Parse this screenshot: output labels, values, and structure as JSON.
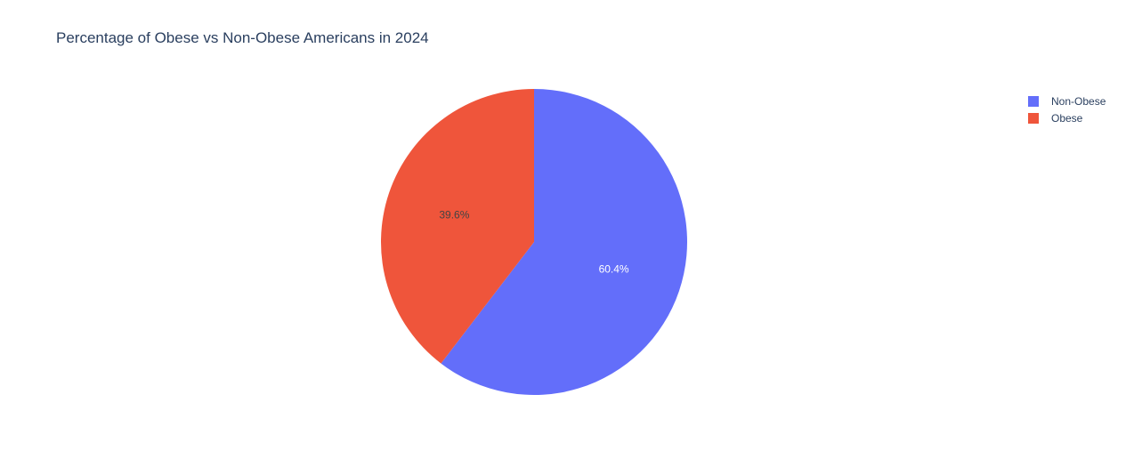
{
  "chart_data": {
    "type": "pie",
    "title": "Percentage of Obese vs Non-Obese Americans in 2024",
    "slices": [
      {
        "label": "Non-Obese",
        "value": 60.4,
        "text": "60.4%",
        "color": "#636efa",
        "text_color": "#ffffff"
      },
      {
        "label": "Obese",
        "value": 39.6,
        "text": "39.6%",
        "color": "#ef553b",
        "text_color": "#444444"
      }
    ],
    "legend": {
      "position": "top-right",
      "entries": [
        "Non-Obese",
        "Obese"
      ]
    },
    "sort": "descending",
    "direction": "clockwise",
    "start_angle": "top"
  }
}
